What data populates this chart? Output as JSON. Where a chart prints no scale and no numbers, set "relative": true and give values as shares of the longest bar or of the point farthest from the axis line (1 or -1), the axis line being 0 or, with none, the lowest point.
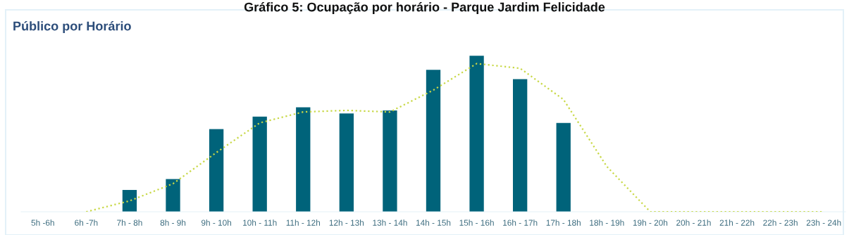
{
  "chart_data": {
    "type": "bar",
    "title": "Gráfico 5: Ocupação por horário - Parque Jardim Felicidade",
    "subtitle": "Público por Horário",
    "relative": true,
    "grid": false,
    "legend": false,
    "categories": [
      "5h -6h",
      "6h -7h",
      "7h - 8h",
      "8h - 9h",
      "9h - 10h",
      "10h - 11h",
      "11h - 12h",
      "12h - 13h",
      "13h - 14h",
      "14h - 15h",
      "15h - 16h",
      "16h - 17h",
      "17h - 18h",
      "18h - 19h",
      "19h - 20h",
      "20h - 21h",
      "21h - 22h",
      "22h - 23h",
      "23h - 24h"
    ],
    "series": [
      {
        "color": "#00637a",
        "values": [
          0,
          0,
          0.14,
          0.21,
          0.53,
          0.61,
          0.67,
          0.63,
          0.65,
          0.91,
          1,
          0.85,
          0.57,
          0,
          0,
          0,
          0,
          0,
          0
        ]
      },
      {
        "type": "line",
        "color": "#c8d846",
        "line_style": "dotted",
        "marker": "none",
        "values": [
          null,
          0,
          0.07,
          0.18,
          0.38,
          0.57,
          0.64,
          0.65,
          0.64,
          0.78,
          0.95,
          0.92,
          0.72,
          0.29,
          0,
          0,
          0,
          0,
          0
        ]
      }
    ]
  }
}
